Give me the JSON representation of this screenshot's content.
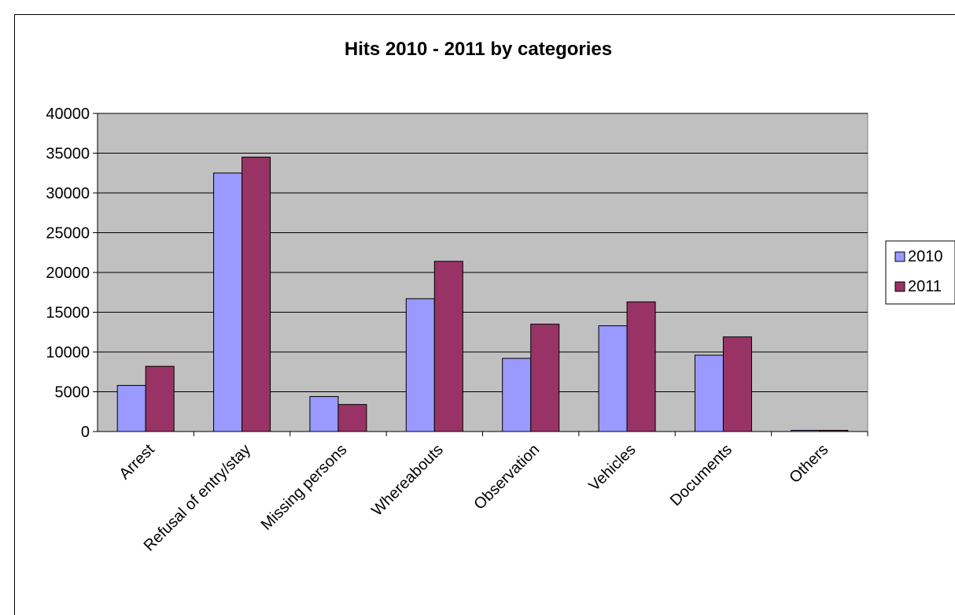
{
  "chart_data": {
    "type": "bar",
    "title": "Hits 2010 - 2011 by categories",
    "xlabel": "",
    "ylabel": "",
    "categories": [
      "Arrest",
      "Refusal of entry/stay",
      "Missing persons",
      "Whereabouts",
      "Observation",
      "Vehicles",
      "Documents",
      "Others"
    ],
    "series": [
      {
        "name": "2010",
        "color": "#9999ff",
        "values": [
          5800,
          32500,
          4400,
          16700,
          9200,
          13300,
          9600,
          150
        ]
      },
      {
        "name": "2011",
        "color": "#993366",
        "values": [
          8200,
          34500,
          3400,
          21400,
          13500,
          16300,
          11900,
          150
        ]
      }
    ],
    "ylim": [
      0,
      40000
    ],
    "yticks": [
      0,
      5000,
      10000,
      15000,
      20000,
      25000,
      30000,
      35000,
      40000
    ],
    "grid": true,
    "plot_background": "#c0c0c0",
    "legend": "right"
  }
}
